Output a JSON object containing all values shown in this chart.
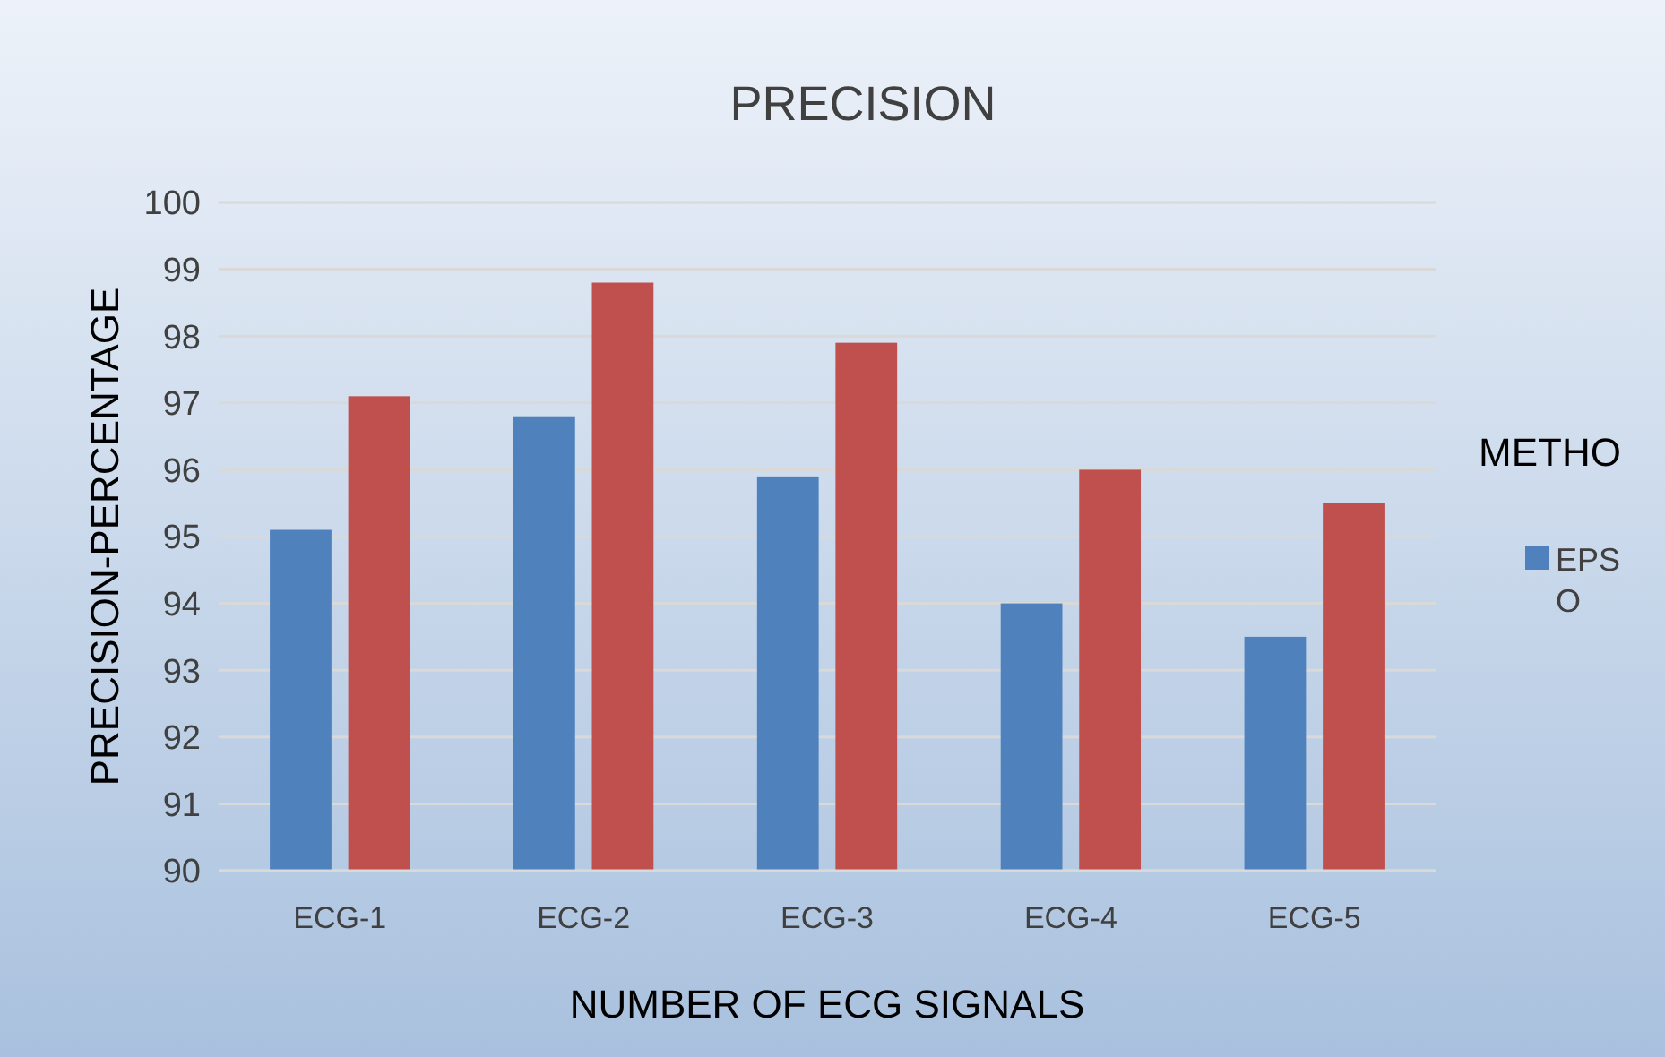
{
  "chart_data": {
    "type": "bar",
    "title": "PRECISION",
    "xlabel": "NUMBER OF ECG SIGNALS",
    "ylabel": "PRECISION-PERCENTAGE",
    "legend_title": "METHO",
    "categories": [
      "ECG-1",
      "ECG-2",
      "ECG-3",
      "ECG-4",
      "ECG-5"
    ],
    "series": [
      {
        "name": "EPSO",
        "color": "#4f81bd",
        "values": [
          95.1,
          96.8,
          95.9,
          94.0,
          93.5
        ]
      },
      {
        "color": "#c0504d",
        "values": [
          97.1,
          98.8,
          97.9,
          96.0,
          95.5
        ]
      }
    ],
    "ylim": [
      90,
      100
    ],
    "yticks": [
      90,
      91,
      92,
      93,
      94,
      95,
      96,
      97,
      98,
      99,
      100
    ],
    "grid": "y",
    "legend": "right"
  }
}
